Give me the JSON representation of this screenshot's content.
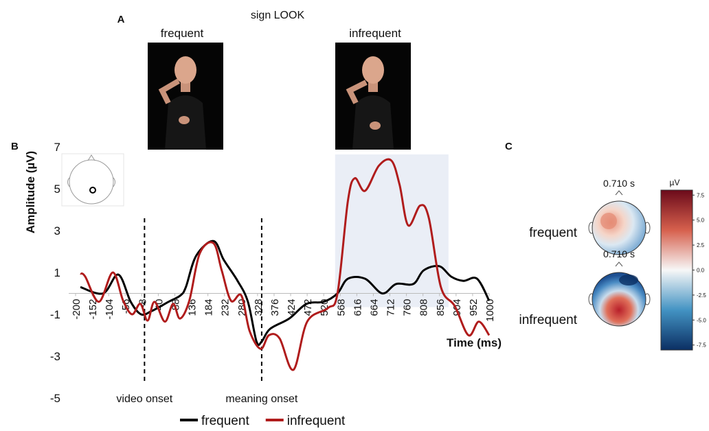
{
  "panel_a": {
    "letter": "A",
    "title": "sign LOOK",
    "images": [
      "frequent",
      "infrequent"
    ]
  },
  "chart_data": {
    "type": "line",
    "panel_label": "B",
    "y_label": "Amplitude  (µV)",
    "x_label": "Time (ms)",
    "xlim": [
      -200,
      1000
    ],
    "xticks": [
      -200,
      -152,
      -104,
      -56,
      -8,
      40,
      88,
      136,
      184,
      232,
      280,
      328,
      376,
      424,
      472,
      520,
      568,
      616,
      664,
      712,
      760,
      808,
      856,
      904,
      952,
      1000
    ],
    "ylim": [
      -5,
      7
    ],
    "yticks": [
      -5,
      -3,
      -1,
      1,
      3,
      5,
      7
    ],
    "highlight_window": [
      553,
      882
    ],
    "events": [
      {
        "x": 0,
        "label": "video onset"
      },
      {
        "x": 340,
        "label": "meaning onset"
      }
    ],
    "series": [
      {
        "name": "frequent",
        "color": "#000000",
        "x": [
          -186,
          -120,
          -76,
          -40,
          -10,
          20,
          70,
          104,
          120,
          150,
          200,
          230,
          270,
          300,
          325,
          340,
          364,
          420,
          470,
          520,
          560,
          590,
          640,
          690,
          730,
          780,
          810,
          855,
          890,
          925,
          965,
          1000
        ],
        "values": [
          0.3,
          0,
          0.9,
          -0.4,
          -1.0,
          -0.85,
          -0.4,
          -0.1,
          0.3,
          1.8,
          2.5,
          1.6,
          0.6,
          -0.4,
          -2.3,
          -2.3,
          -1.7,
          -1.2,
          -0.5,
          -0.4,
          0,
          0.7,
          0.7,
          0,
          0.45,
          0.45,
          1.1,
          1.3,
          0.8,
          0.6,
          0.7,
          -0.35
        ]
      },
      {
        "name": "infrequent",
        "color": "#b01c1c",
        "x": [
          -186,
          -172,
          -132,
          -92,
          -62,
          -36,
          -12,
          9,
          29,
          59,
          83,
          103,
          130,
          160,
          200,
          224,
          251,
          281,
          305,
          337,
          361,
          392,
          432,
          472,
          532,
          560,
          590,
          610,
          640,
          680,
          716,
          740,
          765,
          800,
          825,
          860,
          900,
          940,
          970,
          1000
        ],
        "values": [
          0.95,
          0.8,
          -0.4,
          1.0,
          -0.35,
          -1.0,
          -0.5,
          -1.3,
          -0.4,
          -1.35,
          -0.5,
          -1.2,
          -0.35,
          1.9,
          2.4,
          1.1,
          -0.35,
          -0.1,
          -1.8,
          -2.65,
          -2.0,
          -2.15,
          -3.65,
          -1.35,
          -0.7,
          0,
          4.4,
          5.5,
          4.9,
          6.1,
          6.35,
          5.2,
          3.25,
          4.2,
          3.6,
          0.3,
          -0.6,
          -2.0,
          -1.35,
          -2.0
        ]
      }
    ]
  },
  "panel_c": {
    "letter": "C",
    "colorbar": {
      "label": "µV",
      "lim": [
        -8,
        8
      ],
      "ticks": [
        7.5,
        {
          "value": 5,
          "label": "5.0"
        },
        2.5,
        {
          "value": 0,
          "label": "0.0"
        },
        -2.5,
        {
          "value": -5,
          "label": "-5.0"
        },
        -7.5
      ]
    },
    "topomaps": [
      {
        "time": "0.710 s",
        "label": "frequent"
      },
      {
        "time": "0.710 s",
        "label": "infrequent"
      }
    ]
  }
}
